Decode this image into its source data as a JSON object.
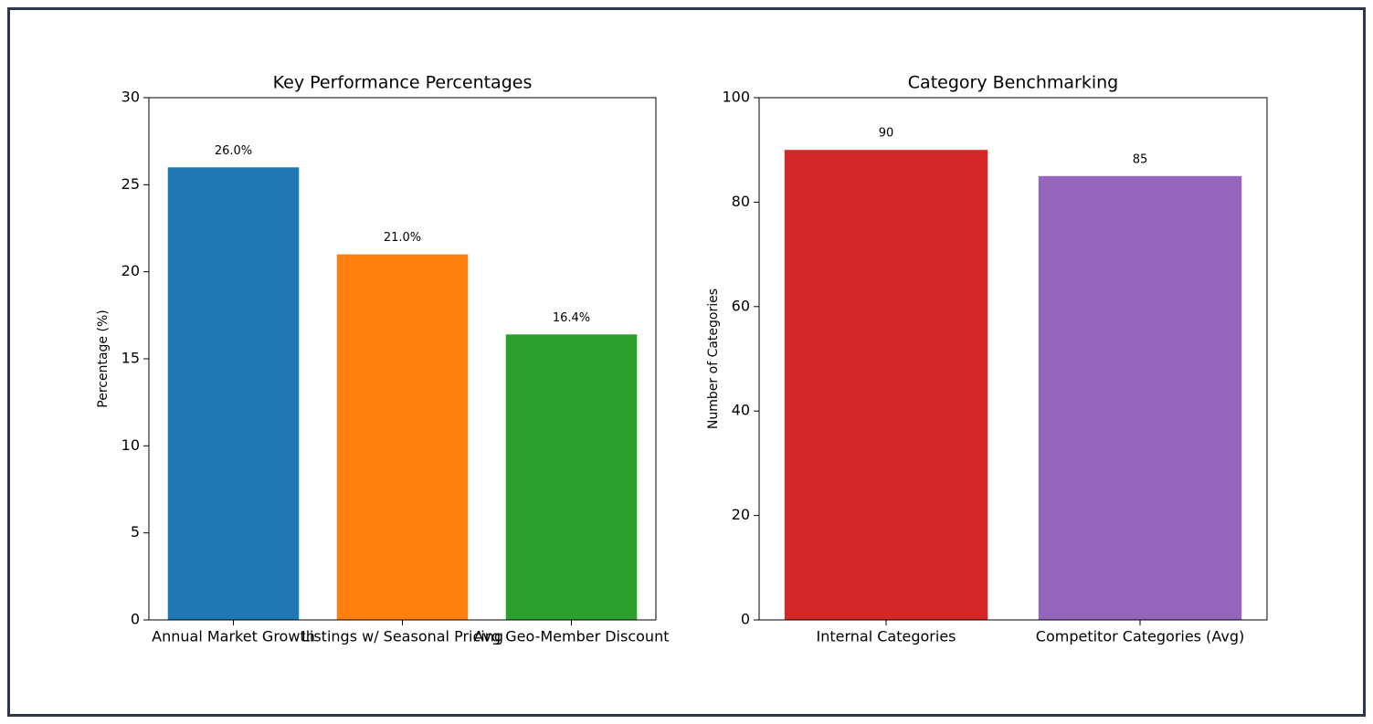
{
  "chart_data": [
    {
      "type": "bar",
      "title": "Key Performance Percentages",
      "ylabel": "Percentage (%)",
      "categories": [
        "Annual Market Growth",
        "Listings w/ Seasonal Pricing",
        "Avg Geo-Member Discount"
      ],
      "values": [
        26.0,
        21.0,
        16.4
      ],
      "value_labels": [
        "26.0%",
        "21.0%",
        "16.4%"
      ],
      "colors": [
        "#1f77b4",
        "#ff7f0e",
        "#2ca02c"
      ],
      "ylim": [
        0,
        30
      ],
      "yticks": [
        0,
        5,
        10,
        15,
        20,
        25,
        30
      ]
    },
    {
      "type": "bar",
      "title": "Category Benchmarking",
      "ylabel": "Number of Categories",
      "categories": [
        "Internal Categories",
        "Competitor Categories (Avg)"
      ],
      "values": [
        90,
        85
      ],
      "colors": [
        "#d62728",
        "#9467bd"
      ],
      "ylim": [
        0,
        100
      ],
      "yticks": [
        0,
        20,
        40,
        60,
        80,
        100
      ]
    }
  ]
}
